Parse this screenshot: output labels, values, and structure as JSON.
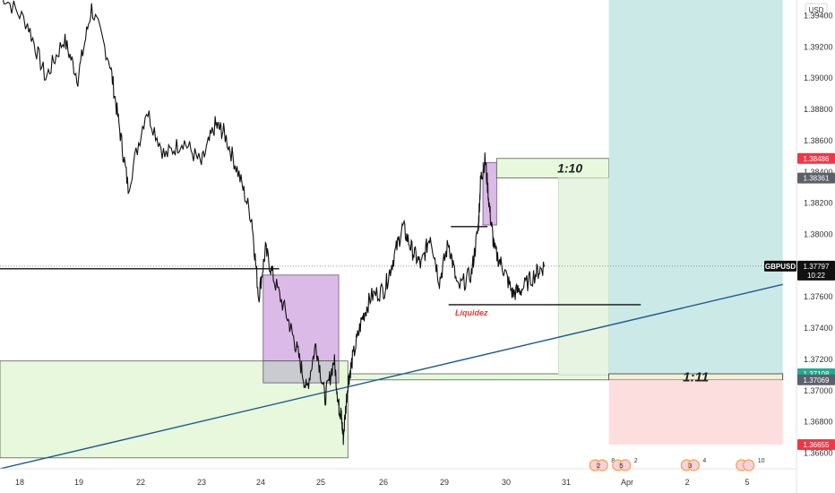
{
  "currency_label": "USD",
  "symbol": "GBPUSD",
  "current_price_label": "1.37797",
  "countdown": "10:22",
  "price_badges": [
    {
      "text": "1.38486",
      "price": 1.38486,
      "color": "#f23645"
    },
    {
      "text": "1.38361",
      "price": 1.38361,
      "color": "#5d606b"
    },
    {
      "text": "1.37108",
      "price": 1.37108,
      "color": "#22ab94"
    },
    {
      "text": "1.37069",
      "price": 1.37069,
      "color": "#5d606b"
    },
    {
      "text": "1.36655",
      "price": 1.36655,
      "color": "#f23645"
    }
  ],
  "annotations": {
    "rr_small": "1:10",
    "rr_large": "1:11",
    "liquidity": "Liquidez"
  },
  "event_icons": [
    {
      "name": "event-flags-1",
      "text": "2",
      "count": "8",
      "day": 30.6
    },
    {
      "name": "event-flags-2",
      "text": "5",
      "count": "2",
      "day": 31.1
    },
    {
      "name": "event-flags-3",
      "text": "3",
      "count": "4",
      "day": 32.6
    },
    {
      "name": "event-flags-4",
      "text": "",
      "count": "10",
      "day": 33.8
    }
  ],
  "colors": {
    "candle": "#111111",
    "supply_zone": "#dbb7e6",
    "demand_zone": "#e6f8dc",
    "target_zone": "#c8e9e6",
    "stop_zone": "#fcdcdc",
    "trendline": "#1d5a8e",
    "liquidity_text": "#e53935"
  },
  "chart_data": {
    "type": "line",
    "series": [
      {
        "x": [
          17.6,
          18.2,
          18.6,
          19.0,
          19.3,
          19.6,
          20.0,
          20.2,
          20.4,
          20.8,
          21.2,
          21.6,
          22.0,
          22.3,
          22.5,
          22.8,
          23.1,
          23.25,
          23.4,
          23.6,
          23.9,
          24.1,
          24.3,
          24.5,
          24.7,
          24.9,
          25.0,
          25.05,
          25.1,
          25.2,
          25.3,
          25.5,
          25.7,
          26.0,
          26.2,
          26.4,
          26.6,
          26.8,
          27.0,
          27.2,
          27.4,
          27.6,
          27.9,
          28.05,
          28.1,
          28.2,
          28.3,
          28.4,
          28.6,
          28.8,
          29.0,
          29.3,
          29.5
        ],
        "values": [
          1.3955,
          1.3935,
          1.39,
          1.3925,
          1.39,
          1.3945,
          1.391,
          1.387,
          1.383,
          1.388,
          1.385,
          1.386,
          1.3845,
          1.387,
          1.3865,
          1.384,
          1.381,
          1.376,
          1.379,
          1.377,
          1.3745,
          1.3725,
          1.37,
          1.373,
          1.3695,
          1.372,
          1.369,
          1.3685,
          1.367,
          1.3705,
          1.372,
          1.3745,
          1.376,
          1.3765,
          1.3785,
          1.3805,
          1.379,
          1.378,
          1.38,
          1.377,
          1.3795,
          1.3765,
          1.3775,
          1.3805,
          1.3835,
          1.3848,
          1.3815,
          1.379,
          1.3778,
          1.3762,
          1.3765,
          1.3775,
          1.378
        ]
      }
    ],
    "horizontal_lines": [
      {
        "price": 1.3778,
        "x_start": 17.6,
        "x_end": 23.7
      },
      {
        "price": 1.3805,
        "x_start": 27.45,
        "x_end": 28.25
      },
      {
        "price": 1.3755,
        "x_start": 27.4,
        "x_end": 31.6
      }
    ],
    "trendline": {
      "x1": 17.6,
      "y1": 1.365,
      "x2": 34.7,
      "y2": 1.3768
    },
    "zones": [
      {
        "name": "supply-zone-1",
        "type": "supply",
        "x1": 23.35,
        "x2": 25.0,
        "y1": 1.3774,
        "y2": 1.3705
      },
      {
        "name": "supply-zone-2",
        "type": "supply",
        "x1": 28.15,
        "x2": 28.45,
        "y1": 1.3846,
        "y2": 1.3806
      },
      {
        "name": "demand-zone-1",
        "type": "demand",
        "x1": 17.6,
        "x2": 25.2,
        "y1": 1.3719,
        "y2": 1.3657
      },
      {
        "name": "demand-zone-2",
        "type": "demand",
        "x1": 25.2,
        "x2": 34.7,
        "y1": 1.37108,
        "y2": 1.37069
      },
      {
        "name": "overlap-zone",
        "type": "overlap",
        "x1": 23.35,
        "x2": 25.0,
        "y1": 1.3719,
        "y2": 1.3705
      },
      {
        "name": "rr-small-target",
        "type": "target",
        "x1": 28.45,
        "x2": 30.9,
        "y1": 1.38486,
        "y2": 1.38361
      },
      {
        "name": "rr-small-entry",
        "type": "entry",
        "x1": 29.8,
        "x2": 30.9,
        "y1": 1.38361,
        "y2": 1.371
      },
      {
        "name": "rr-large-target",
        "type": "target-large",
        "x1": 30.9,
        "x2": 34.7,
        "y1": 1.395,
        "y2": 1.37108
      },
      {
        "name": "rr-large-entry",
        "type": "entry-large",
        "x1": 30.9,
        "x2": 34.7,
        "y1": 1.37108,
        "y2": 1.37069
      },
      {
        "name": "rr-large-stop",
        "type": "stop",
        "x1": 30.9,
        "x2": 34.7,
        "y1": 1.37069,
        "y2": 1.36655
      }
    ],
    "ylim": [
      1.365,
      1.395
    ],
    "yticks": [
      "1.36600",
      "1.36800",
      "1.37000",
      "1.37200",
      "1.37400",
      "1.37600",
      "1.37800",
      "1.38000",
      "1.38200",
      "1.38400",
      "1.38600",
      "1.38800",
      "1.39000",
      "1.39200",
      "1.39400"
    ],
    "xticks": [
      "18",
      "19",
      "22",
      "23",
      "24",
      "25",
      "26",
      "29",
      "30",
      "31",
      "Apr",
      "2",
      "5"
    ],
    "xtick_positions": [
      18,
      19,
      20,
      21,
      22,
      23,
      24,
      25,
      26,
      27,
      28,
      29,
      30
    ],
    "grid": false,
    "legend": "none"
  }
}
